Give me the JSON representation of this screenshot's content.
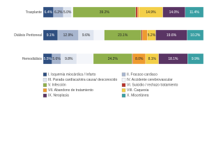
{
  "chart_data": {
    "type": "stacked-bar-horizontal",
    "categories": [
      "Trasplante",
      "Diálisis Peritoneal",
      "Hemodiálisis"
    ],
    "series": [
      {
        "name": "I. Isquemia miocárdica / Infarto",
        "color": "#2f4f80",
        "values": [
          6.4,
          9.1,
          5.5
        ],
        "value_labels": [
          "6.4%",
          "9.1%",
          "5.5%"
        ]
      },
      {
        "name": "II. Fracaso cardiaco",
        "color": "#a8b6cf",
        "values": [
          6.2,
          12.9,
          5.6
        ],
        "value_labels": [
          "6.2%",
          "12.9%",
          "5.6%"
        ]
      },
      {
        "name": "III. Parada cardíaca/otra causa/ desconocido",
        "color": "#dfe5ef",
        "values": [
          5.0,
          9.6,
          9.8
        ],
        "value_labels": [
          "5.0%",
          "9.6%",
          "9.8%"
        ]
      },
      {
        "name": "IV. Accidente cerebrovascular",
        "color": "#f4f6fa",
        "values": [
          1.0,
          6.5,
          10.4
        ],
        "value_labels": [
          null,
          null,
          null
        ]
      },
      {
        "name": "V. Infección",
        "color": "#8fb04c",
        "values": [
          39.2,
          23.1,
          24.2
        ],
        "value_labels": [
          "39.2%",
          "23.1%",
          "24.2%"
        ]
      },
      {
        "name": "VI. Suicidio / rechazo tratamiento",
        "color": "#b8342c",
        "values": [
          1.0,
          0.6,
          0.4
        ],
        "value_labels": [
          null,
          null,
          null
        ]
      },
      {
        "name": "VII. Abandono de tratamiento",
        "color": "#ee9b2f",
        "values": [
          0.9,
          3.2,
          8.0
        ],
        "value_labels": [
          null,
          null,
          "8.0%"
        ]
      },
      {
        "name": "VIII. Caquexia",
        "color": "#f3cf48",
        "values": [
          14.9,
          5.2,
          8.1
        ],
        "value_labels": [
          "14.9%",
          "5.2%",
          "8.1%"
        ]
      },
      {
        "name": "IX. Neoplasia",
        "color": "#5a3564",
        "values": [
          14.0,
          19.6,
          18.1
        ],
        "value_labels": [
          "14.0%",
          "19.6%",
          "18.1%"
        ]
      },
      {
        "name": "X. Miscelánea",
        "color": "#3a9fa3",
        "values": [
          11.4,
          10.2,
          9.9
        ],
        "value_labels": [
          "11.4%",
          "10.2%",
          "9.9%"
        ]
      }
    ]
  }
}
